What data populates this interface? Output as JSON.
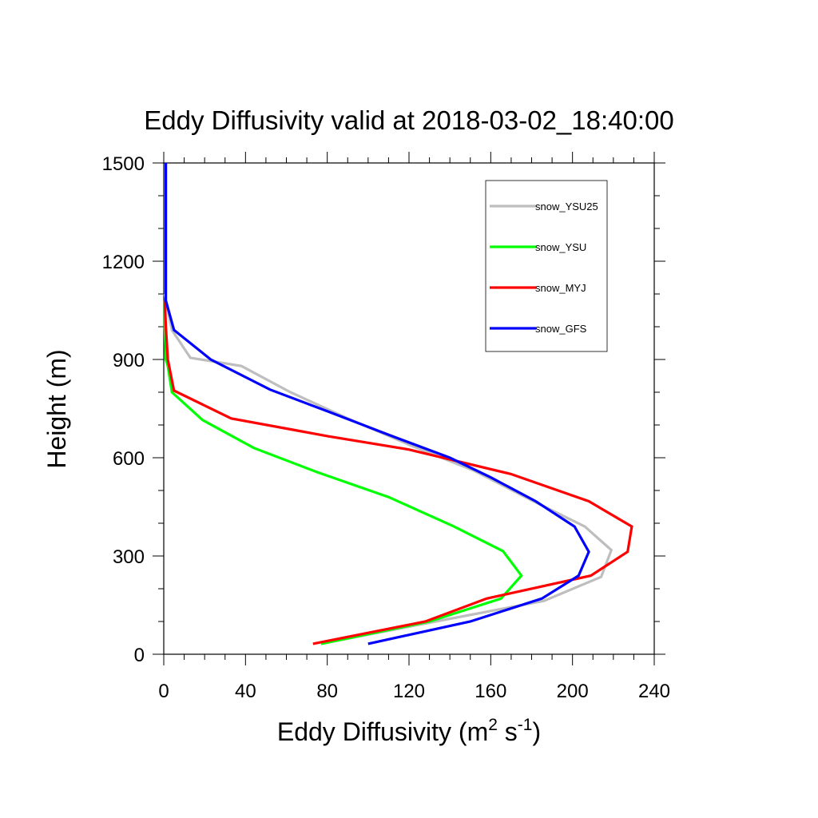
{
  "chart_data": {
    "type": "line",
    "title": "Eddy Diffusivity valid at 2018-03-02_18:40:00",
    "xlabel": {
      "main": "Eddy Diffusivity (m",
      "sup1": "2",
      "mid": " s",
      "sup2": "-1",
      "end": ")"
    },
    "ylabel": "Height (m)",
    "xlim": [
      0,
      240
    ],
    "ylim": [
      0,
      1500
    ],
    "xticks": [
      0,
      40,
      80,
      120,
      160,
      200,
      240
    ],
    "xtick_labels": [
      "0",
      "40",
      "80",
      "120",
      "160",
      "200",
      "240"
    ],
    "yticks": [
      0,
      300,
      600,
      900,
      1200,
      1500
    ],
    "ytick_labels": [
      "0",
      "300",
      "600",
      "900",
      "1200",
      "1500"
    ],
    "legend_position": "top-right",
    "series": [
      {
        "name": "snow_YSU25",
        "color": "#bebebe",
        "points": [
          [
            77,
            32
          ],
          [
            133,
            100
          ],
          [
            186,
            163
          ],
          [
            214,
            236
          ],
          [
            219,
            318
          ],
          [
            206,
            390
          ],
          [
            180,
            470
          ],
          [
            152,
            560
          ],
          [
            120,
            640
          ],
          [
            90,
            720
          ],
          [
            62,
            800
          ],
          [
            38,
            880
          ],
          [
            13,
            905
          ],
          [
            4,
            990
          ],
          [
            1,
            1080
          ],
          [
            0.5,
            1100
          ]
        ]
      },
      {
        "name": "snow_YSU",
        "color": "#00ff00",
        "points": [
          [
            77,
            32
          ],
          [
            130,
            100
          ],
          [
            165,
            170
          ],
          [
            175,
            240
          ],
          [
            166,
            315
          ],
          [
            142,
            390
          ],
          [
            110,
            480
          ],
          [
            75,
            556
          ],
          [
            44,
            630
          ],
          [
            19,
            715
          ],
          [
            4,
            800
          ],
          [
            2,
            880
          ],
          [
            1,
            900
          ],
          [
            0.5,
            1000
          ],
          [
            0.5,
            1080
          ]
        ]
      },
      {
        "name": "snow_MYJ",
        "color": "#ff0000",
        "points": [
          [
            73,
            32
          ],
          [
            128,
            100
          ],
          [
            158,
            170
          ],
          [
            209,
            240
          ],
          [
            227,
            313
          ],
          [
            229,
            390
          ],
          [
            208,
            467
          ],
          [
            170,
            550
          ],
          [
            120,
            625
          ],
          [
            80,
            666
          ],
          [
            33,
            720
          ],
          [
            5,
            805
          ],
          [
            2,
            900
          ],
          [
            1,
            1000
          ],
          [
            0.5,
            1080
          ]
        ]
      },
      {
        "name": "snow_GFS",
        "color": "#0000ff",
        "points": [
          [
            100,
            32
          ],
          [
            150,
            100
          ],
          [
            185,
            170
          ],
          [
            203,
            240
          ],
          [
            208,
            313
          ],
          [
            201,
            390
          ],
          [
            182,
            467
          ],
          [
            160,
            540
          ],
          [
            140,
            600
          ],
          [
            110,
            670
          ],
          [
            80,
            742
          ],
          [
            52,
            808
          ],
          [
            23,
            900
          ],
          [
            5,
            990
          ],
          [
            1,
            1080
          ],
          [
            1,
            1200
          ],
          [
            1,
            1500
          ]
        ]
      }
    ]
  }
}
